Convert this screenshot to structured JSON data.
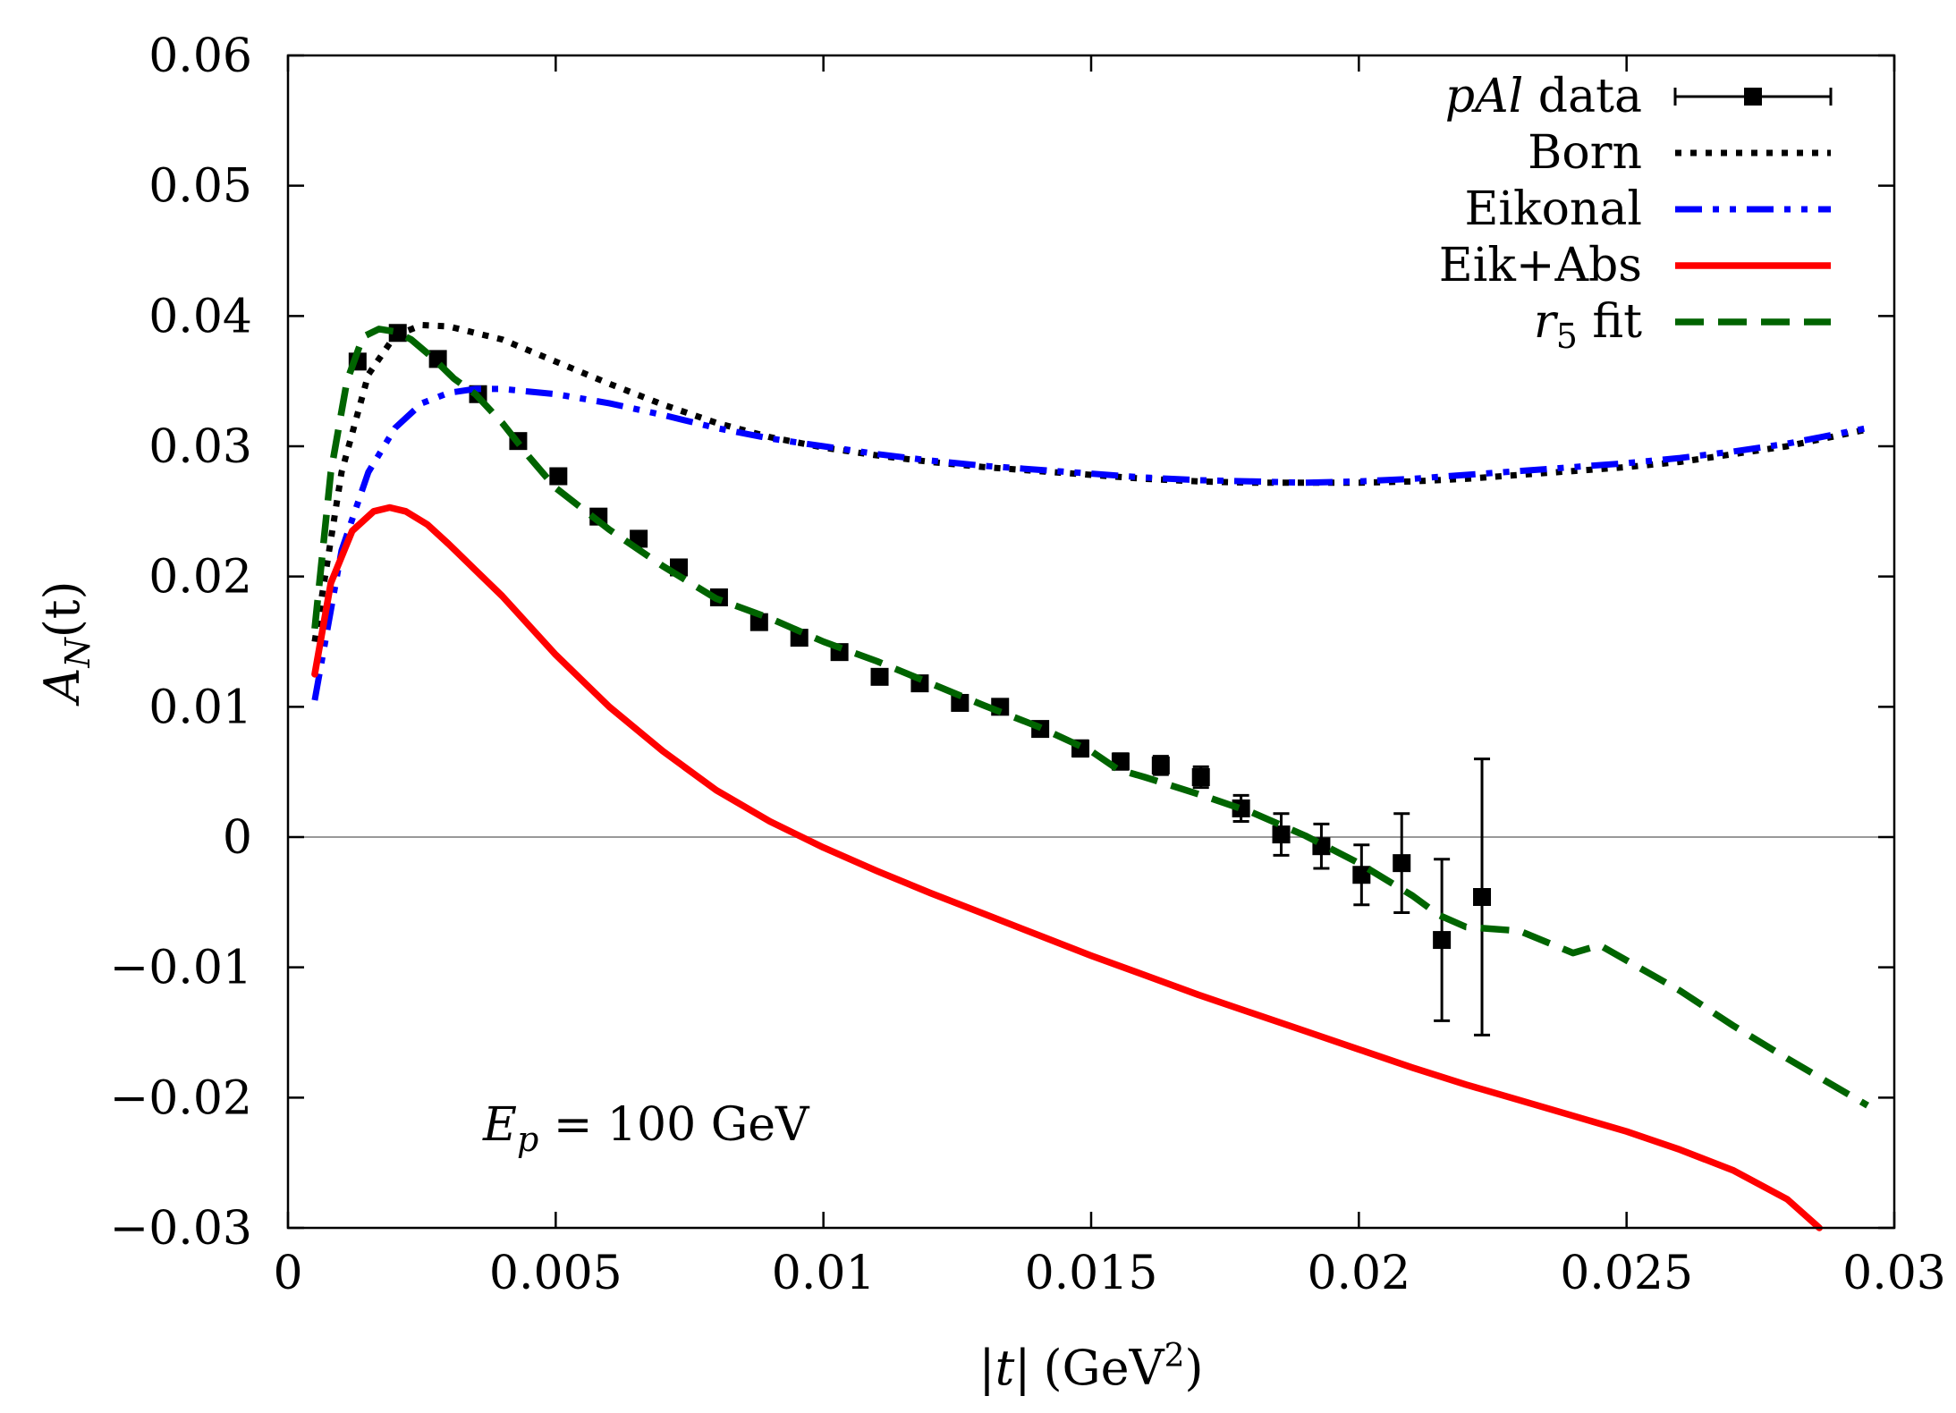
{
  "chart_data": {
    "type": "line",
    "xlabel": {
      "open": "|",
      "var": "t",
      "close": "|",
      "unit": "(GeV",
      "sup": "2",
      "unit_close": ")"
    },
    "ylabel": {
      "main": "A",
      "sub": "N",
      "arg": "(t)"
    },
    "xlim": [
      0,
      0.03
    ],
    "ylim": [
      -0.03,
      0.06
    ],
    "xticks": [
      0,
      0.005,
      0.01,
      0.015,
      0.02,
      0.025,
      0.03
    ],
    "xtick_labels": [
      "0",
      "0.005",
      "0.01",
      "0.015",
      "0.02",
      "0.025",
      "0.03"
    ],
    "yticks": [
      -0.03,
      -0.02,
      -0.01,
      0,
      0.01,
      0.02,
      0.03,
      0.04,
      0.05,
      0.06
    ],
    "ytick_labels": [
      "−0.03",
      "−0.02",
      "−0.01",
      "0",
      "0.01",
      "0.02",
      "0.03",
      "0.04",
      "0.05",
      "0.06"
    ],
    "zero_line": true,
    "annotation": {
      "lhs": "E",
      "sub": "p",
      "rhs": " = 100 GeV"
    },
    "legend_position": "top-right",
    "series": [
      {
        "name": "pAl data",
        "legend": {
          "italic": "pAl",
          "rest": " data"
        },
        "kind": "points",
        "color": "#000000",
        "x": [
          0.0013,
          0.00205,
          0.0028,
          0.00355,
          0.0043,
          0.00505,
          0.0058,
          0.00655,
          0.0073,
          0.00805,
          0.0088,
          0.00955,
          0.0103,
          0.01105,
          0.0118,
          0.01255,
          0.0133,
          0.01405,
          0.0148,
          0.01555,
          0.0163,
          0.01705,
          0.0178,
          0.01855,
          0.0193,
          0.02005,
          0.0208,
          0.02155,
          0.0223
        ],
        "y": [
          0.0365,
          0.0387,
          0.0367,
          0.034,
          0.0304,
          0.0277,
          0.0246,
          0.0229,
          0.0207,
          0.0184,
          0.0165,
          0.0153,
          0.0142,
          0.0123,
          0.0118,
          0.0103,
          0.01,
          0.0083,
          0.0068,
          0.0058,
          0.0055,
          0.0046,
          0.0022,
          0.0002,
          -0.0007,
          -0.0029,
          -0.002,
          -0.0079,
          -0.0046
        ],
        "yerr": [
          0.0004,
          0.0004,
          0.0004,
          0.0004,
          0.0004,
          0.0004,
          0.0004,
          0.0004,
          0.0004,
          0.0004,
          0.0004,
          0.0004,
          0.0004,
          0.0004,
          0.0005,
          0.0005,
          0.0005,
          0.0005,
          0.0006,
          0.0006,
          0.0007,
          0.0008,
          0.001,
          0.0016,
          0.0017,
          0.0023,
          0.0038,
          0.0062,
          0.0106
        ]
      },
      {
        "name": "Born",
        "legend": {
          "italic": "",
          "rest": "Born"
        },
        "kind": "line",
        "style": "dotted",
        "color": "#000000",
        "x": [
          0.0005,
          0.001,
          0.0015,
          0.002,
          0.0025,
          0.003,
          0.004,
          0.005,
          0.006,
          0.007,
          0.008,
          0.009,
          0.01,
          0.011,
          0.012,
          0.013,
          0.014,
          0.015,
          0.016,
          0.017,
          0.018,
          0.019,
          0.02,
          0.021,
          0.022,
          0.023,
          0.024,
          0.025,
          0.026,
          0.027,
          0.028,
          0.0295
        ],
        "y": [
          0.015,
          0.028,
          0.0355,
          0.0385,
          0.0393,
          0.0392,
          0.0382,
          0.0365,
          0.0348,
          0.0332,
          0.0318,
          0.0307,
          0.0299,
          0.0293,
          0.0288,
          0.0284,
          0.0281,
          0.0278,
          0.0275,
          0.0273,
          0.0272,
          0.0272,
          0.0272,
          0.0273,
          0.0275,
          0.0278,
          0.0281,
          0.0284,
          0.0288,
          0.0294,
          0.03,
          0.0313
        ]
      },
      {
        "name": "Eikonal",
        "legend": {
          "italic": "",
          "rest": "Eikonal"
        },
        "kind": "line",
        "style": "dashdotdot",
        "color": "#0000ff",
        "x": [
          0.0005,
          0.001,
          0.0015,
          0.002,
          0.0025,
          0.003,
          0.0035,
          0.004,
          0.005,
          0.006,
          0.007,
          0.008,
          0.009,
          0.01,
          0.011,
          0.012,
          0.013,
          0.014,
          0.015,
          0.016,
          0.017,
          0.018,
          0.019,
          0.02,
          0.021,
          0.022,
          0.023,
          0.024,
          0.025,
          0.026,
          0.027,
          0.028,
          0.0295
        ],
        "y": [
          0.0105,
          0.022,
          0.028,
          0.0314,
          0.0333,
          0.0341,
          0.0344,
          0.0344,
          0.034,
          0.0333,
          0.0324,
          0.0314,
          0.0306,
          0.03,
          0.0294,
          0.0289,
          0.0285,
          0.0282,
          0.0279,
          0.0276,
          0.0274,
          0.0273,
          0.0272,
          0.0273,
          0.0275,
          0.0278,
          0.0281,
          0.0284,
          0.0287,
          0.0291,
          0.0296,
          0.0302,
          0.0314
        ]
      },
      {
        "name": "Eik+Abs",
        "legend": {
          "italic": "",
          "rest": "Eik+Abs"
        },
        "kind": "line",
        "style": "solid",
        "color": "#ff0000",
        "x": [
          0.0005,
          0.0008,
          0.0012,
          0.0016,
          0.0019,
          0.0022,
          0.0026,
          0.003,
          0.0035,
          0.004,
          0.005,
          0.006,
          0.007,
          0.008,
          0.009,
          0.01,
          0.011,
          0.012,
          0.013,
          0.014,
          0.015,
          0.016,
          0.017,
          0.018,
          0.019,
          0.02,
          0.021,
          0.022,
          0.023,
          0.024,
          0.025,
          0.026,
          0.027,
          0.028,
          0.0286
        ],
        "y": [
          0.0125,
          0.0195,
          0.0235,
          0.025,
          0.0253,
          0.025,
          0.024,
          0.0225,
          0.0205,
          0.0185,
          0.014,
          0.01,
          0.0066,
          0.0036,
          0.0012,
          -0.0008,
          -0.0026,
          -0.0043,
          -0.0059,
          -0.0075,
          -0.0091,
          -0.0106,
          -0.0121,
          -0.0135,
          -0.0149,
          -0.0163,
          -0.0177,
          -0.019,
          -0.0202,
          -0.0214,
          -0.0226,
          -0.024,
          -0.0256,
          -0.0278,
          -0.03
        ]
      },
      {
        "name": "r5 fit",
        "legend": {
          "italic": "r",
          "sub": "5",
          "rest": " fit"
        },
        "kind": "line",
        "style": "dashed",
        "color": "#006400",
        "x": [
          0.0005,
          0.0008,
          0.0011,
          0.0014,
          0.0017,
          0.002,
          0.0023,
          0.0027,
          0.0031,
          0.0035,
          0.004,
          0.0045,
          0.005,
          0.006,
          0.007,
          0.008,
          0.009,
          0.01,
          0.011,
          0.012,
          0.013,
          0.014,
          0.015,
          0.0155,
          0.016,
          0.017,
          0.018,
          0.019,
          0.02,
          0.021,
          0.0215,
          0.022,
          0.023,
          0.024,
          0.0245,
          0.026,
          0.027,
          0.028,
          0.0295
        ],
        "y": [
          0.016,
          0.028,
          0.035,
          0.0384,
          0.039,
          0.0388,
          0.0382,
          0.0368,
          0.0352,
          0.034,
          0.0318,
          0.0292,
          0.0268,
          0.0236,
          0.0208,
          0.0183,
          0.0168,
          0.015,
          0.0135,
          0.0118,
          0.0101,
          0.0085,
          0.0066,
          0.0052,
          0.0046,
          0.0033,
          0.0019,
          0.0001,
          -0.002,
          -0.0045,
          -0.006,
          -0.0069,
          -0.0072,
          -0.0089,
          -0.0083,
          -0.0118,
          -0.0145,
          -0.017,
          -0.0206
        ]
      }
    ]
  }
}
